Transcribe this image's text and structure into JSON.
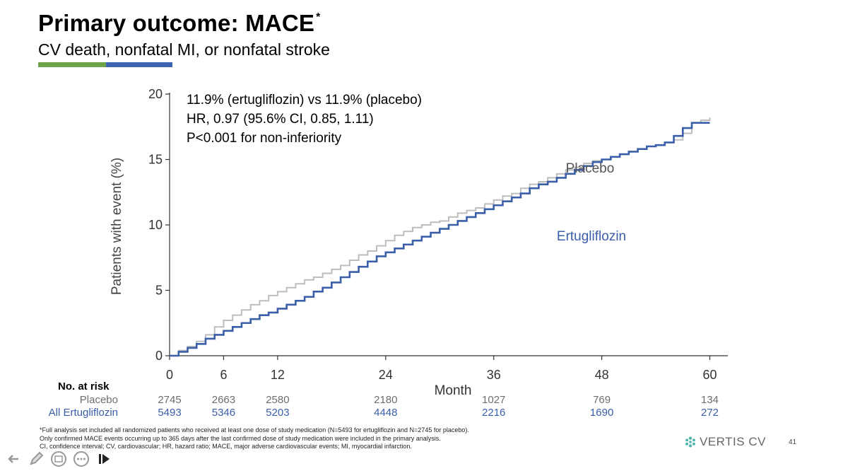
{
  "slide": {
    "title": "Primary outcome: MACE",
    "title_marker": "*",
    "subtitle": "CV death, nonfatal MI, or nonfatal stroke",
    "accent_colors": [
      "#6ba24a",
      "#3f63b3"
    ],
    "brand": "VERTIS CV",
    "slide_number": "41"
  },
  "stats": {
    "line1": "11.9% (ertugliflozin) vs 11.9% (placebo)",
    "line2": "HR, 0.97 (95.6% CI, 0.85, 1.11)",
    "line3": "P<0.001 for non-inferiority"
  },
  "risk_table": {
    "header": "No. at risk",
    "placebo_label": "Placebo",
    "ertu_label": "All Ertugliflozin",
    "months": [
      0,
      6,
      12,
      24,
      36,
      48,
      60
    ],
    "placebo": [
      "2745",
      "2663",
      "2580",
      "2180",
      "1027",
      "769",
      "134"
    ],
    "ertu": [
      "5493",
      "5346",
      "5203",
      "4448",
      "2216",
      "1690",
      "272"
    ]
  },
  "footnote": {
    "line1": "*Full analysis set included all randomized patients who received at least one dose of study medication (N=5493 for ertugliflozin and N=2745 for placebo).",
    "line2": "Only confirmed MACE events occurring up to 365 days after the last confirmed  dose of study medication were included in the primary analysis.",
    "line3": "CI, confidence interval; CV, cardiovascular; HR, hazard ratio; MACE, major adverse cardiovascular events; MI, myocardial infarction."
  },
  "chart_data": {
    "type": "line",
    "xlabel": "Month",
    "ylabel": "Patients with event (%)",
    "xlim": [
      0,
      62
    ],
    "ylim": [
      0,
      20
    ],
    "xticks": [
      0,
      6,
      12,
      24,
      36,
      48,
      60
    ],
    "yticks": [
      0,
      5,
      10,
      15,
      20
    ],
    "grid": false,
    "series": [
      {
        "name": "Placebo",
        "color": "#bdbdbd",
        "step": true,
        "x": [
          0,
          1,
          2,
          3,
          4,
          5,
          6,
          7,
          8,
          9,
          10,
          11,
          12,
          13,
          14,
          15,
          16,
          17,
          18,
          19,
          20,
          21,
          22,
          23,
          24,
          25,
          26,
          27,
          28,
          29,
          30,
          31,
          32,
          33,
          34,
          35,
          36,
          37,
          38,
          39,
          40,
          41,
          42,
          43,
          44,
          45,
          46,
          47,
          48,
          49,
          50,
          51,
          52,
          53,
          54,
          55,
          56,
          57,
          58,
          59,
          60
        ],
        "y": [
          0,
          0.4,
          0.7,
          1.1,
          1.6,
          2.2,
          2.7,
          3.1,
          3.5,
          3.9,
          4.2,
          4.6,
          4.9,
          5.2,
          5.5,
          5.8,
          6.0,
          6.3,
          6.6,
          6.9,
          7.3,
          7.7,
          8.0,
          8.4,
          8.8,
          9.2,
          9.5,
          9.8,
          10.0,
          10.2,
          10.3,
          10.6,
          10.9,
          11.1,
          11.3,
          11.6,
          11.9,
          12.2,
          12.4,
          12.8,
          13.1,
          13.3,
          13.6,
          13.9,
          14.2,
          14.4,
          14.7,
          14.9,
          15.0,
          15.2,
          15.4,
          15.6,
          15.8,
          16.0,
          16.1,
          16.3,
          16.5,
          17.0,
          17.8,
          18.0,
          18.2
        ]
      },
      {
        "name": "Ertugliflozin",
        "color": "#3a5fa8",
        "step": true,
        "x": [
          0,
          1,
          2,
          3,
          4,
          5,
          6,
          7,
          8,
          9,
          10,
          11,
          12,
          13,
          14,
          15,
          16,
          17,
          18,
          19,
          20,
          21,
          22,
          23,
          24,
          25,
          26,
          27,
          28,
          29,
          30,
          31,
          32,
          33,
          34,
          35,
          36,
          37,
          38,
          39,
          40,
          41,
          42,
          43,
          44,
          45,
          46,
          47,
          48,
          49,
          50,
          51,
          52,
          53,
          54,
          55,
          56,
          57,
          58,
          59,
          60
        ],
        "y": [
          0,
          0.3,
          0.6,
          0.9,
          1.3,
          1.6,
          1.9,
          2.2,
          2.5,
          2.8,
          3.1,
          3.3,
          3.6,
          3.9,
          4.2,
          4.5,
          4.9,
          5.2,
          5.6,
          6.0,
          6.4,
          6.8,
          7.2,
          7.6,
          7.9,
          8.2,
          8.5,
          8.8,
          9.1,
          9.4,
          9.7,
          10.0,
          10.3,
          10.6,
          10.9,
          11.2,
          11.5,
          11.8,
          12.1,
          12.4,
          12.8,
          13.1,
          13.3,
          13.6,
          13.9,
          14.2,
          14.5,
          14.8,
          15.0,
          15.2,
          15.4,
          15.6,
          15.8,
          16.0,
          16.1,
          16.3,
          16.8,
          17.4,
          17.8,
          17.8,
          17.8
        ]
      }
    ],
    "annotations": [
      {
        "text": "Placebo",
        "x": 44,
        "y": 14.0,
        "color": "#555555"
      },
      {
        "text": "Ertugliflozin",
        "x": 43,
        "y": 8.8,
        "color": "#3a5fa8"
      }
    ]
  },
  "nav": {
    "icons": [
      "back-arrow-icon",
      "pen-icon",
      "slides-icon",
      "more-icon",
      "forward-icon"
    ]
  }
}
